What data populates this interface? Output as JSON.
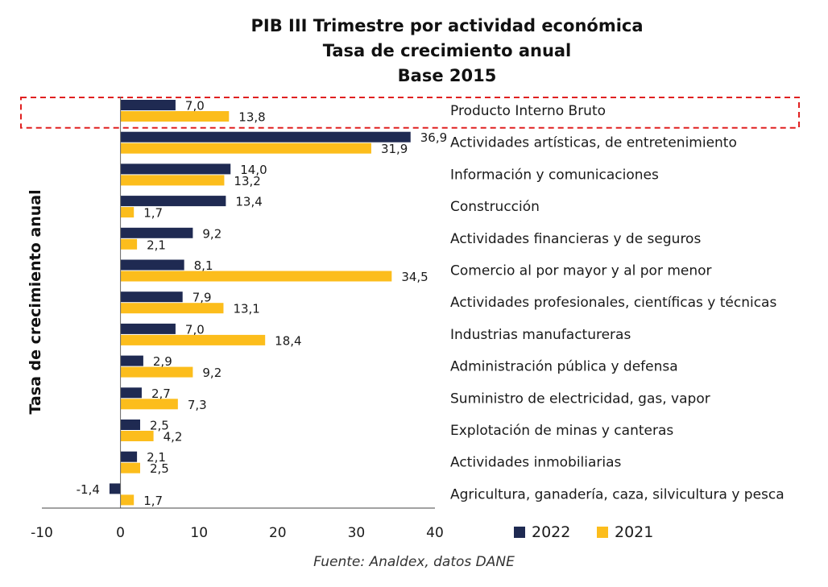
{
  "chart_data": {
    "type": "bar",
    "orientation": "horizontal",
    "title": [
      "PIB III Trimestre por actividad económica",
      "Tasa de crecimiento anual",
      "Base 2015"
    ],
    "ylabel": "Tasa de crecimiento anual",
    "xlim": [
      -10,
      40
    ],
    "xticks": [
      "-10",
      "0",
      "10",
      "20",
      "30",
      "40"
    ],
    "categories": [
      "Producto Interno Bruto",
      "Actividades artísticas, de entretenimiento",
      "Información y comunicaciones",
      "Construcción",
      "Actividades financieras y de seguros",
      "Comercio al por mayor y al por menor",
      "Actividades profesionales, científicas y técnicas",
      "Industrias manufactureras",
      "Administración pública y defensa",
      "Suministro de electricidad, gas, vapor",
      "Explotación de minas y canteras",
      "Actividades inmobiliarias",
      "Agricultura, ganadería, caza, silvicultura y pesca"
    ],
    "series": [
      {
        "name": "2022",
        "color": "#1f2a52",
        "values": [
          7.0,
          36.9,
          14.0,
          13.4,
          9.2,
          8.1,
          7.9,
          7.0,
          2.9,
          2.7,
          2.5,
          2.1,
          -1.4
        ],
        "labels": [
          "7,0",
          "36,9",
          "14,0",
          "13,4",
          "9,2",
          "8,1",
          "7,9",
          "7,0",
          "2,9",
          "2,7",
          "2,5",
          "2,1",
          "-1,4"
        ]
      },
      {
        "name": "2021",
        "color": "#fcbd1c",
        "values": [
          13.8,
          31.9,
          13.2,
          1.7,
          2.1,
          34.5,
          13.1,
          18.4,
          9.2,
          7.3,
          4.2,
          2.5,
          1.7
        ],
        "labels": [
          "13,8",
          "31,9",
          "13,2",
          "1,7",
          "2,1",
          "34,5",
          "13,1",
          "18,4",
          "9,2",
          "7,3",
          "4,2",
          "2,5",
          "1,7"
        ]
      }
    ],
    "highlight": "Producto Interno Bruto",
    "highlight_color": "#e02020",
    "legend": [
      "2022",
      "2021"
    ],
    "source": "Fuente: Analdex, datos DANE"
  }
}
